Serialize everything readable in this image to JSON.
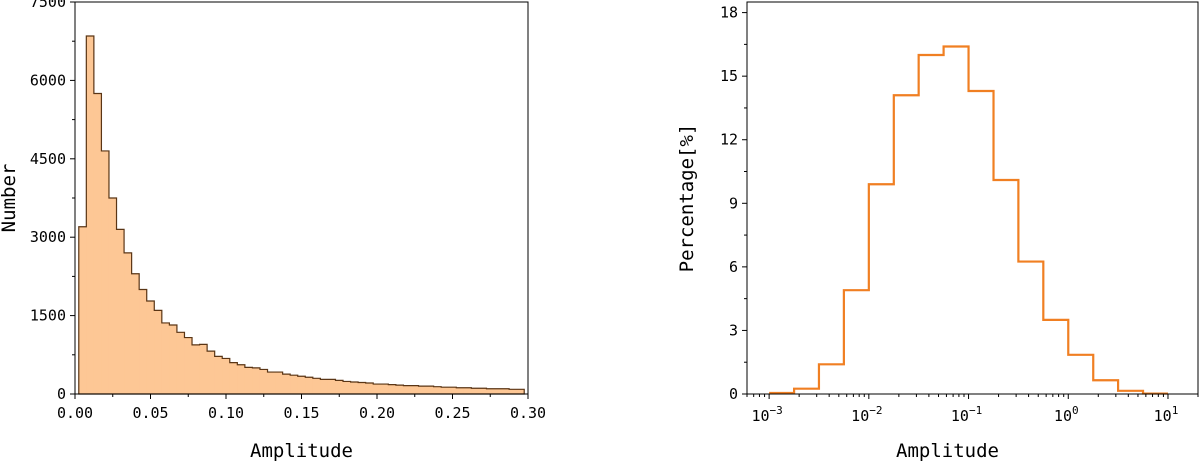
{
  "chart_data": [
    {
      "type": "bar",
      "histogram": true,
      "xlabel": "Amplitude",
      "ylabel": "Number",
      "xlim": [
        0.0,
        0.3
      ],
      "ylim": [
        0,
        7500
      ],
      "bin_width": 0.005,
      "bin_start": 0.0025,
      "xticks": [
        0.0,
        0.05,
        0.1,
        0.15,
        0.2,
        0.25,
        0.3
      ],
      "xtick_labels": [
        "0.00",
        "0.05",
        "0.10",
        "0.15",
        "0.20",
        "0.25",
        "0.30"
      ],
      "yticks": [
        0,
        1500,
        3000,
        4500,
        6000,
        7500
      ],
      "ytick_labels": [
        "0",
        "1500",
        "3000",
        "4500",
        "6000",
        "7500"
      ],
      "fill_color": "#fdc795",
      "edge_color": "#5a3515",
      "values": [
        3200,
        6850,
        5750,
        4650,
        3750,
        3150,
        2700,
        2300,
        2000,
        1780,
        1600,
        1360,
        1320,
        1180,
        1080,
        940,
        950,
        820,
        720,
        680,
        600,
        560,
        510,
        500,
        470,
        420,
        420,
        380,
        360,
        340,
        320,
        300,
        280,
        280,
        260,
        240,
        230,
        220,
        210,
        190,
        190,
        180,
        170,
        160,
        160,
        150,
        150,
        140,
        130,
        130,
        120,
        120,
        110,
        110,
        100,
        100,
        100,
        90,
        90
      ]
    },
    {
      "type": "line",
      "step": true,
      "xscale": "log",
      "xlabel": "Amplitude",
      "ylabel": "Percentage[%]",
      "xlim": [
        0.0006,
        20
      ],
      "ylim": [
        0,
        18.5
      ],
      "xtick_exponents": [
        -3,
        -2,
        -1,
        0,
        1
      ],
      "xtick_base": "10",
      "yticks": [
        0,
        3,
        6,
        9,
        12,
        15,
        18
      ],
      "ytick_labels": [
        "0",
        "3",
        "6",
        "9",
        "12",
        "15",
        "18"
      ],
      "line_color": "#f07f22",
      "bin_edges": [
        0.001,
        0.00178,
        0.00316,
        0.00562,
        0.01,
        0.0178,
        0.0316,
        0.0562,
        0.1,
        0.178,
        0.316,
        0.562,
        1.0,
        1.78,
        3.16,
        5.62,
        10.0
      ],
      "values": [
        0.05,
        0.25,
        1.4,
        4.9,
        9.9,
        14.1,
        16.0,
        16.4,
        14.3,
        10.1,
        6.25,
        3.5,
        1.85,
        0.65,
        0.15,
        0.02
      ]
    }
  ]
}
